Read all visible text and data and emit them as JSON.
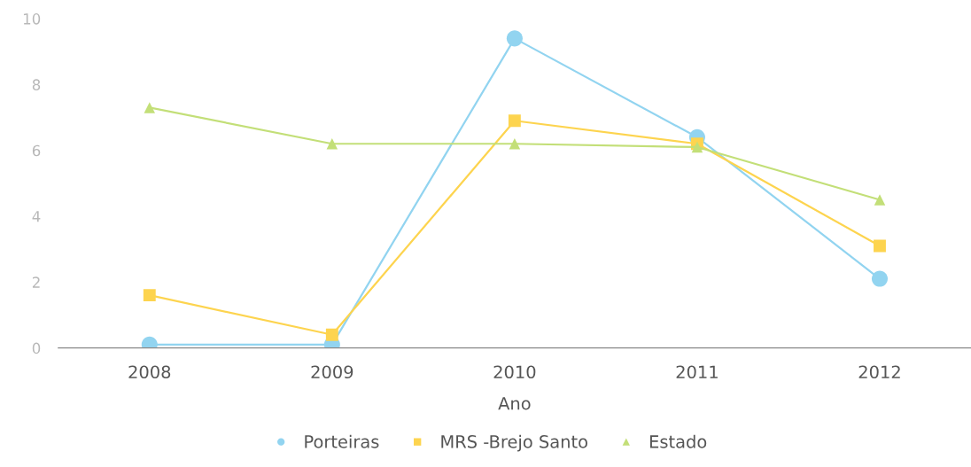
{
  "chart_data": {
    "type": "line",
    "xlabel": "Ano",
    "categories": [
      "2008",
      "2009",
      "2010",
      "2011",
      "2012"
    ],
    "series": [
      {
        "name": "Porteiras",
        "color": "#92d4f0",
        "marker": "circle",
        "values": [
          0.1,
          0.1,
          9.4,
          6.4,
          2.1
        ]
      },
      {
        "name": "MRS -Brejo Santo",
        "color": "#fdd44f",
        "marker": "square",
        "values": [
          1.6,
          0.4,
          6.9,
          6.2,
          3.1
        ]
      },
      {
        "name": "Estado",
        "color": "#c3df78",
        "marker": "triangle",
        "values": [
          7.3,
          6.2,
          6.2,
          6.1,
          4.5
        ]
      }
    ],
    "ylim": [
      0,
      10
    ],
    "yticks": [
      0,
      2,
      4,
      6,
      8,
      10
    ],
    "legend": "bottom",
    "line_style": "solid"
  }
}
